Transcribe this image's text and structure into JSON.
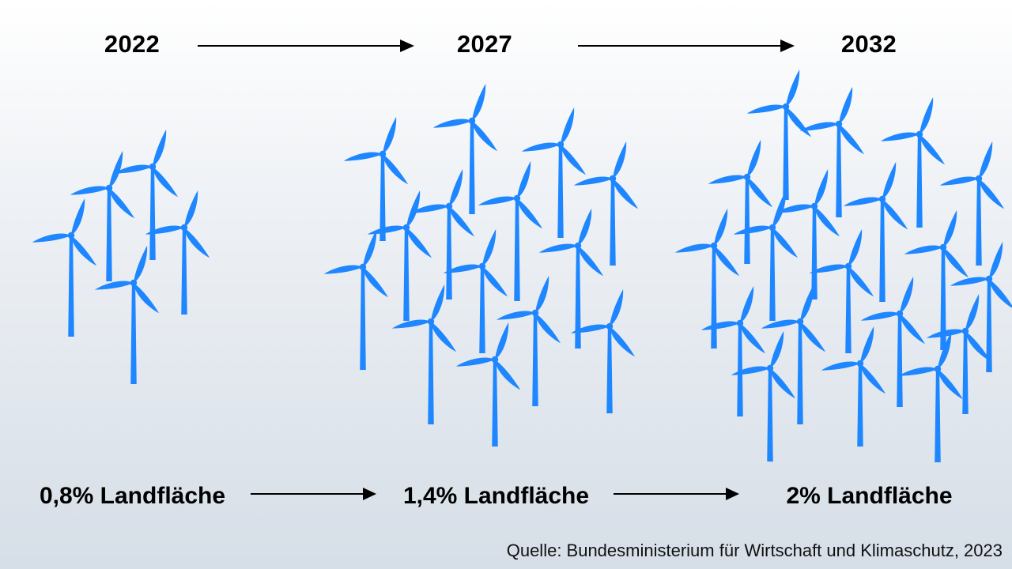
{
  "timeline": [
    {
      "year": "2022",
      "share_label": "0,8% Landfläche",
      "turbine_count": 5
    },
    {
      "year": "2027",
      "share_label": "1,4% Landfläche",
      "turbine_count": 15
    },
    {
      "year": "2032",
      "share_label": "2% Landfläche",
      "turbine_count": 24
    }
  ],
  "source": "Quelle: Bundesministerium für Wirtschaft und Klimaschutz, 2023",
  "colors": {
    "turbine": "#1e86ff",
    "text": "#000000",
    "arrow": "#000000"
  },
  "icons": {
    "turbine": "wind-turbine-icon",
    "arrow": "arrow-right-icon"
  }
}
